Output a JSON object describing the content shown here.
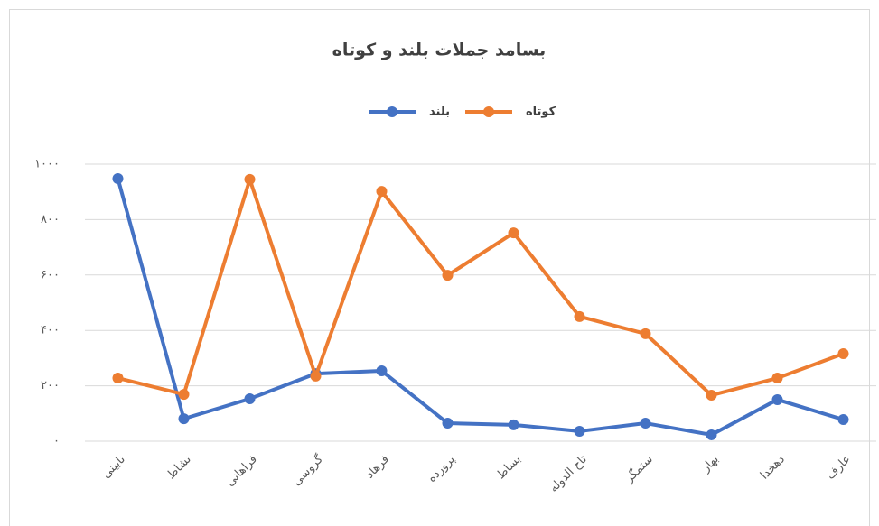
{
  "chart_data": {
    "type": "line",
    "title": "بسامد جملات بلند و کوتاه",
    "categories": [
      "نایینی",
      "نشاط",
      "فراهانی",
      "گروسی",
      "فرهاد",
      "پرورده",
      "بساط",
      "تاج الدوله",
      "ستمگر",
      "بهار",
      "دهخدا",
      "عارف"
    ],
    "series": [
      {
        "name": "بلند",
        "color": "#4472c4",
        "values": [
          948,
          81,
          153,
          244,
          254,
          65,
          59,
          36,
          65,
          23,
          150,
          78
        ]
      },
      {
        "name": "کوتاه",
        "color": "#ed7d31",
        "values": [
          228,
          169,
          945,
          235,
          902,
          599,
          752,
          450,
          388,
          166,
          228,
          316
        ]
      }
    ],
    "ylim": [
      0,
      1000
    ],
    "yticks": [
      {
        "value": 0,
        "label": "۰"
      },
      {
        "value": 200,
        "label": "۲۰۰"
      },
      {
        "value": 400,
        "label": "۴۰۰"
      },
      {
        "value": 600,
        "label": "۶۰۰"
      },
      {
        "value": 800,
        "label": "۸۰۰"
      },
      {
        "value": 1000,
        "label": "۱۰۰۰"
      }
    ],
    "grid": true,
    "legend": "top"
  }
}
